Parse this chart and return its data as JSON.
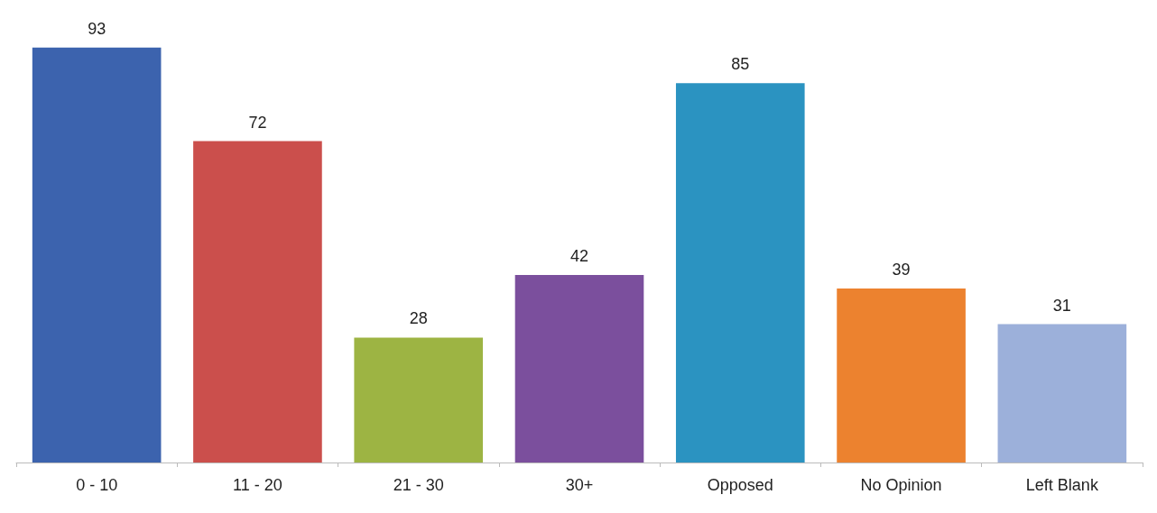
{
  "chart_data": {
    "type": "bar",
    "categories": [
      "0 - 10",
      "11 - 20",
      "21 - 30",
      "30+",
      "Opposed",
      "No Opinion",
      "Left Blank"
    ],
    "values": [
      93,
      72,
      28,
      42,
      85,
      39,
      31
    ],
    "colors": [
      "#3c63ae",
      "#cb4f4c",
      "#9db443",
      "#7b4f9d",
      "#2b93c1",
      "#ec822f",
      "#9cb0da"
    ],
    "data_labels": true
  }
}
